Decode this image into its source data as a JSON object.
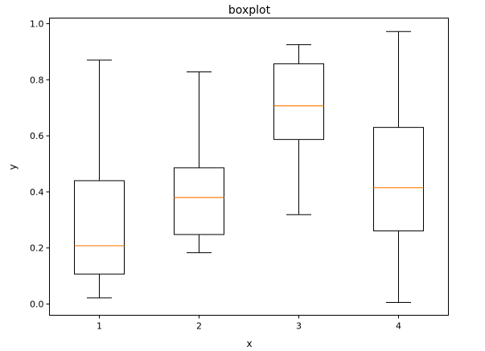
{
  "chart_data": {
    "type": "boxplot",
    "title": "boxplot",
    "xlabel": "x",
    "ylabel": "y",
    "categories": [
      "1",
      "2",
      "3",
      "4"
    ],
    "boxes": [
      {
        "label": "1",
        "min": 0.022,
        "q1": 0.107,
        "median": 0.208,
        "q3": 0.44,
        "max": 0.87
      },
      {
        "label": "2",
        "min": 0.183,
        "q1": 0.248,
        "median": 0.38,
        "q3": 0.486,
        "max": 0.828
      },
      {
        "label": "3",
        "min": 0.319,
        "q1": 0.587,
        "median": 0.707,
        "q3": 0.857,
        "max": 0.925
      },
      {
        "label": "4",
        "min": 0.006,
        "q1": 0.261,
        "median": 0.415,
        "q3": 0.63,
        "max": 0.972
      }
    ],
    "ylim": [
      -0.04,
      1.02
    ],
    "yticks": [
      "0.0",
      "0.2",
      "0.4",
      "0.6",
      "0.8",
      "1.0"
    ],
    "ytick_values": [
      0.0,
      0.2,
      0.4,
      0.6,
      0.8,
      1.0
    ],
    "grid": false,
    "colors": {
      "box": "#000000",
      "median": "#ff7f0e"
    }
  }
}
